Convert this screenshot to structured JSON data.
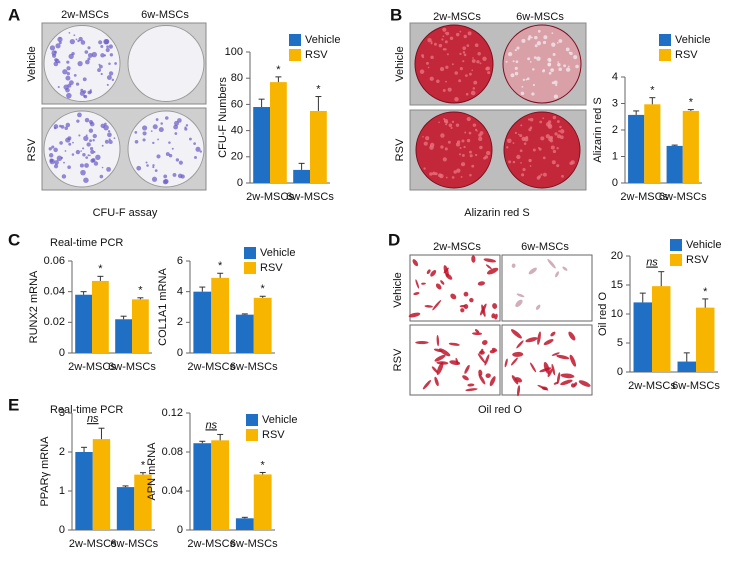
{
  "figure": {
    "A": {
      "label": "A",
      "columns": [
        "2w-MSCs",
        "6w-MSCs"
      ],
      "rows": [
        "Vehicle",
        "RSV"
      ],
      "caption": "CFU-F assay"
    },
    "B": {
      "label": "B",
      "columns": [
        "2w-MSCs",
        "6w-MSCs"
      ],
      "rows": [
        "Vehicle",
        "RSV"
      ],
      "caption": "Alizarin red S"
    },
    "C": {
      "label": "C",
      "subtitle": "Real-time PCR"
    },
    "D": {
      "label": "D",
      "columns": [
        "2w-MSCs",
        "6w-MSCs"
      ],
      "rows": [
        "Vehicle",
        "RSV"
      ],
      "caption": "Oil red O"
    },
    "E": {
      "label": "E",
      "subtitle": "Real-time PCR"
    }
  },
  "chart_data": [
    {
      "type": "bar",
      "ylabel": "CFU-F Numbers",
      "categories": [
        "2w-MSCs",
        "6w-MSCs"
      ],
      "ylim": [
        0,
        100
      ],
      "yticks": [
        0,
        20,
        40,
        60,
        80,
        100
      ],
      "series": [
        {
          "name": "Vehicle",
          "color": "#1f6fc5",
          "values": [
            58,
            10
          ],
          "errors": [
            6,
            5
          ]
        },
        {
          "name": "RSV",
          "color": "#f7b500",
          "values": [
            77,
            55
          ],
          "errors": [
            4,
            11
          ]
        }
      ],
      "annotations": [
        "*",
        "*"
      ]
    },
    {
      "type": "bar",
      "ylabel": "Alizarin red S",
      "categories": [
        "2w-MSCs",
        "6w-MSCs"
      ],
      "ylim": [
        0,
        4
      ],
      "yticks": [
        0,
        1,
        2,
        3,
        4
      ],
      "series": [
        {
          "name": "Vehicle",
          "color": "#1f6fc5",
          "values": [
            2.57,
            1.4
          ],
          "errors": [
            0.15,
            0.03
          ]
        },
        {
          "name": "RSV",
          "color": "#f7b500",
          "values": [
            2.97,
            2.72
          ],
          "errors": [
            0.25,
            0.05
          ]
        }
      ],
      "annotations": [
        "*",
        "*"
      ]
    },
    {
      "type": "bar",
      "ylabel": "RUNX2 mRNA",
      "categories": [
        "2w-MSCs",
        "6w-MSCs"
      ],
      "ylim": [
        0,
        0.06
      ],
      "yticks": [
        0,
        0.02,
        0.04,
        0.06
      ],
      "series": [
        {
          "color": "#1f6fc5",
          "values": [
            0.038,
            0.022
          ],
          "errors": [
            0.002,
            0.002
          ]
        },
        {
          "color": "#f7b500",
          "values": [
            0.047,
            0.035
          ],
          "errors": [
            0.003,
            0.001
          ]
        }
      ],
      "annotations": [
        "*",
        "*"
      ]
    },
    {
      "type": "bar",
      "ylabel": "COL1A1 mRNA",
      "categories": [
        "2w-MSCs",
        "6w-MSCs"
      ],
      "ylim": [
        0,
        6
      ],
      "yticks": [
        0,
        2,
        4,
        6
      ],
      "series": [
        {
          "name": "Vehicle",
          "color": "#1f6fc5",
          "values": [
            4.0,
            2.5
          ],
          "errors": [
            0.3,
            0.05
          ]
        },
        {
          "name": "RSV",
          "color": "#f7b500",
          "values": [
            4.9,
            3.6
          ],
          "errors": [
            0.3,
            0.1
          ]
        }
      ],
      "annotations": [
        "*",
        "*"
      ]
    },
    {
      "type": "bar",
      "ylabel": "Oil red O",
      "categories": [
        "2w-MSCs",
        "6w-MSCs"
      ],
      "ylim": [
        0,
        20
      ],
      "yticks": [
        0,
        5,
        10,
        15,
        20
      ],
      "series": [
        {
          "name": "Vehicle",
          "color": "#1f6fc5",
          "values": [
            12,
            1.8
          ],
          "errors": [
            1.6,
            1.5
          ]
        },
        {
          "name": "RSV",
          "color": "#f7b500",
          "values": [
            14.8,
            11.1
          ],
          "errors": [
            2.5,
            1.5
          ]
        }
      ],
      "annotations": [
        "ns",
        "*"
      ]
    },
    {
      "type": "bar",
      "ylabel": "PPARγ mRNA",
      "categories": [
        "2w-MSCs",
        "6w-MSCs"
      ],
      "ylim": [
        0,
        3
      ],
      "yticks": [
        0,
        1,
        2,
        3
      ],
      "series": [
        {
          "color": "#1f6fc5",
          "values": [
            2.0,
            1.1
          ],
          "errors": [
            0.12,
            0.03
          ]
        },
        {
          "color": "#f7b500",
          "values": [
            2.33,
            1.42
          ],
          "errors": [
            0.28,
            0.05
          ]
        }
      ],
      "annotations": [
        "ns",
        "*"
      ]
    },
    {
      "type": "bar",
      "ylabel": "APN mRNA",
      "categories": [
        "2w-MSCs",
        "6w-MSCs"
      ],
      "ylim": [
        0,
        0.12
      ],
      "yticks": [
        0,
        0.04,
        0.08,
        0.12
      ],
      "series": [
        {
          "name": "Vehicle",
          "color": "#1f6fc5",
          "values": [
            0.089,
            0.012
          ],
          "errors": [
            0.002,
            0.001
          ]
        },
        {
          "name": "RSV",
          "color": "#f7b500",
          "values": [
            0.092,
            0.057
          ],
          "errors": [
            0.006,
            0.002
          ]
        }
      ],
      "annotations": [
        "ns",
        "*"
      ]
    }
  ]
}
